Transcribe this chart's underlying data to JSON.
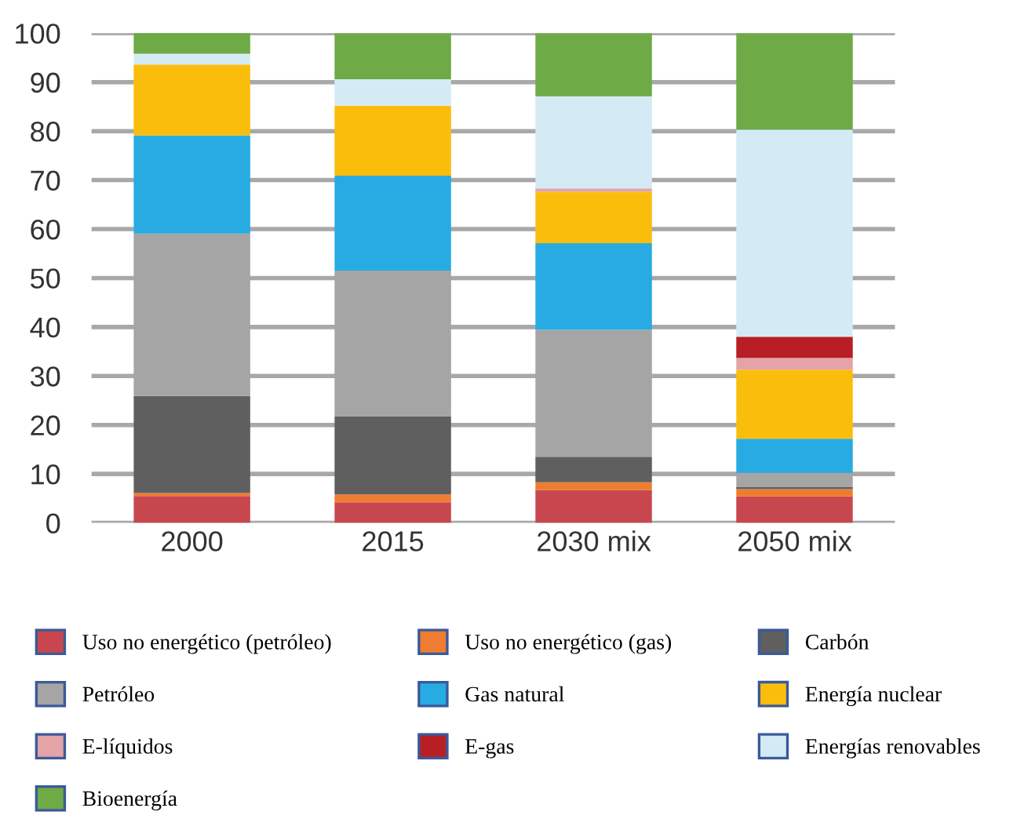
{
  "chart_data": {
    "type": "bar",
    "stacked": true,
    "categories": [
      "2000",
      "2015",
      "2030 mix",
      "2050 mix"
    ],
    "series": [
      {
        "name": "Uso no energético (petróleo)",
        "color": "#c8474e",
        "values": [
          5.5,
          4.2,
          6.7,
          5.4
        ]
      },
      {
        "name": "Uso no energético (gas)",
        "color": "#ee7d31",
        "values": [
          0.6,
          1.6,
          1.6,
          1.5
        ]
      },
      {
        "name": "Carbón",
        "color": "#5f5f5f",
        "values": [
          19.8,
          16.0,
          5.2,
          0.4
        ]
      },
      {
        "name": "Petróleo",
        "color": "#a5a5a5",
        "values": [
          33.2,
          29.7,
          25.9,
          2.9
        ]
      },
      {
        "name": "Gas natural",
        "color": "#28abe2",
        "values": [
          20.0,
          19.4,
          17.7,
          7.0
        ]
      },
      {
        "name": "Energía nuclear",
        "color": "#fbbd0b",
        "values": [
          14.5,
          14.3,
          10.5,
          14.1
        ]
      },
      {
        "name": "E-líquidos",
        "color": "#e3a3a7",
        "values": [
          0,
          0,
          0.7,
          2.4
        ]
      },
      {
        "name": "E-gas",
        "color": "#b81f25",
        "values": [
          0,
          0,
          0,
          4.3
        ]
      },
      {
        "name": "Energías renovables",
        "color": "#d4ebf6",
        "values": [
          2.2,
          5.4,
          18.8,
          42.3
        ]
      },
      {
        "name": "Bioenergía",
        "color": "#6eaa46",
        "values": [
          4.3,
          9.4,
          12.9,
          19.7
        ]
      }
    ],
    "ylim": [
      0,
      100
    ],
    "yticks": [
      0,
      10,
      20,
      30,
      40,
      50,
      60,
      70,
      80,
      90,
      100
    ],
    "grid": "y",
    "legend": "bottom"
  }
}
